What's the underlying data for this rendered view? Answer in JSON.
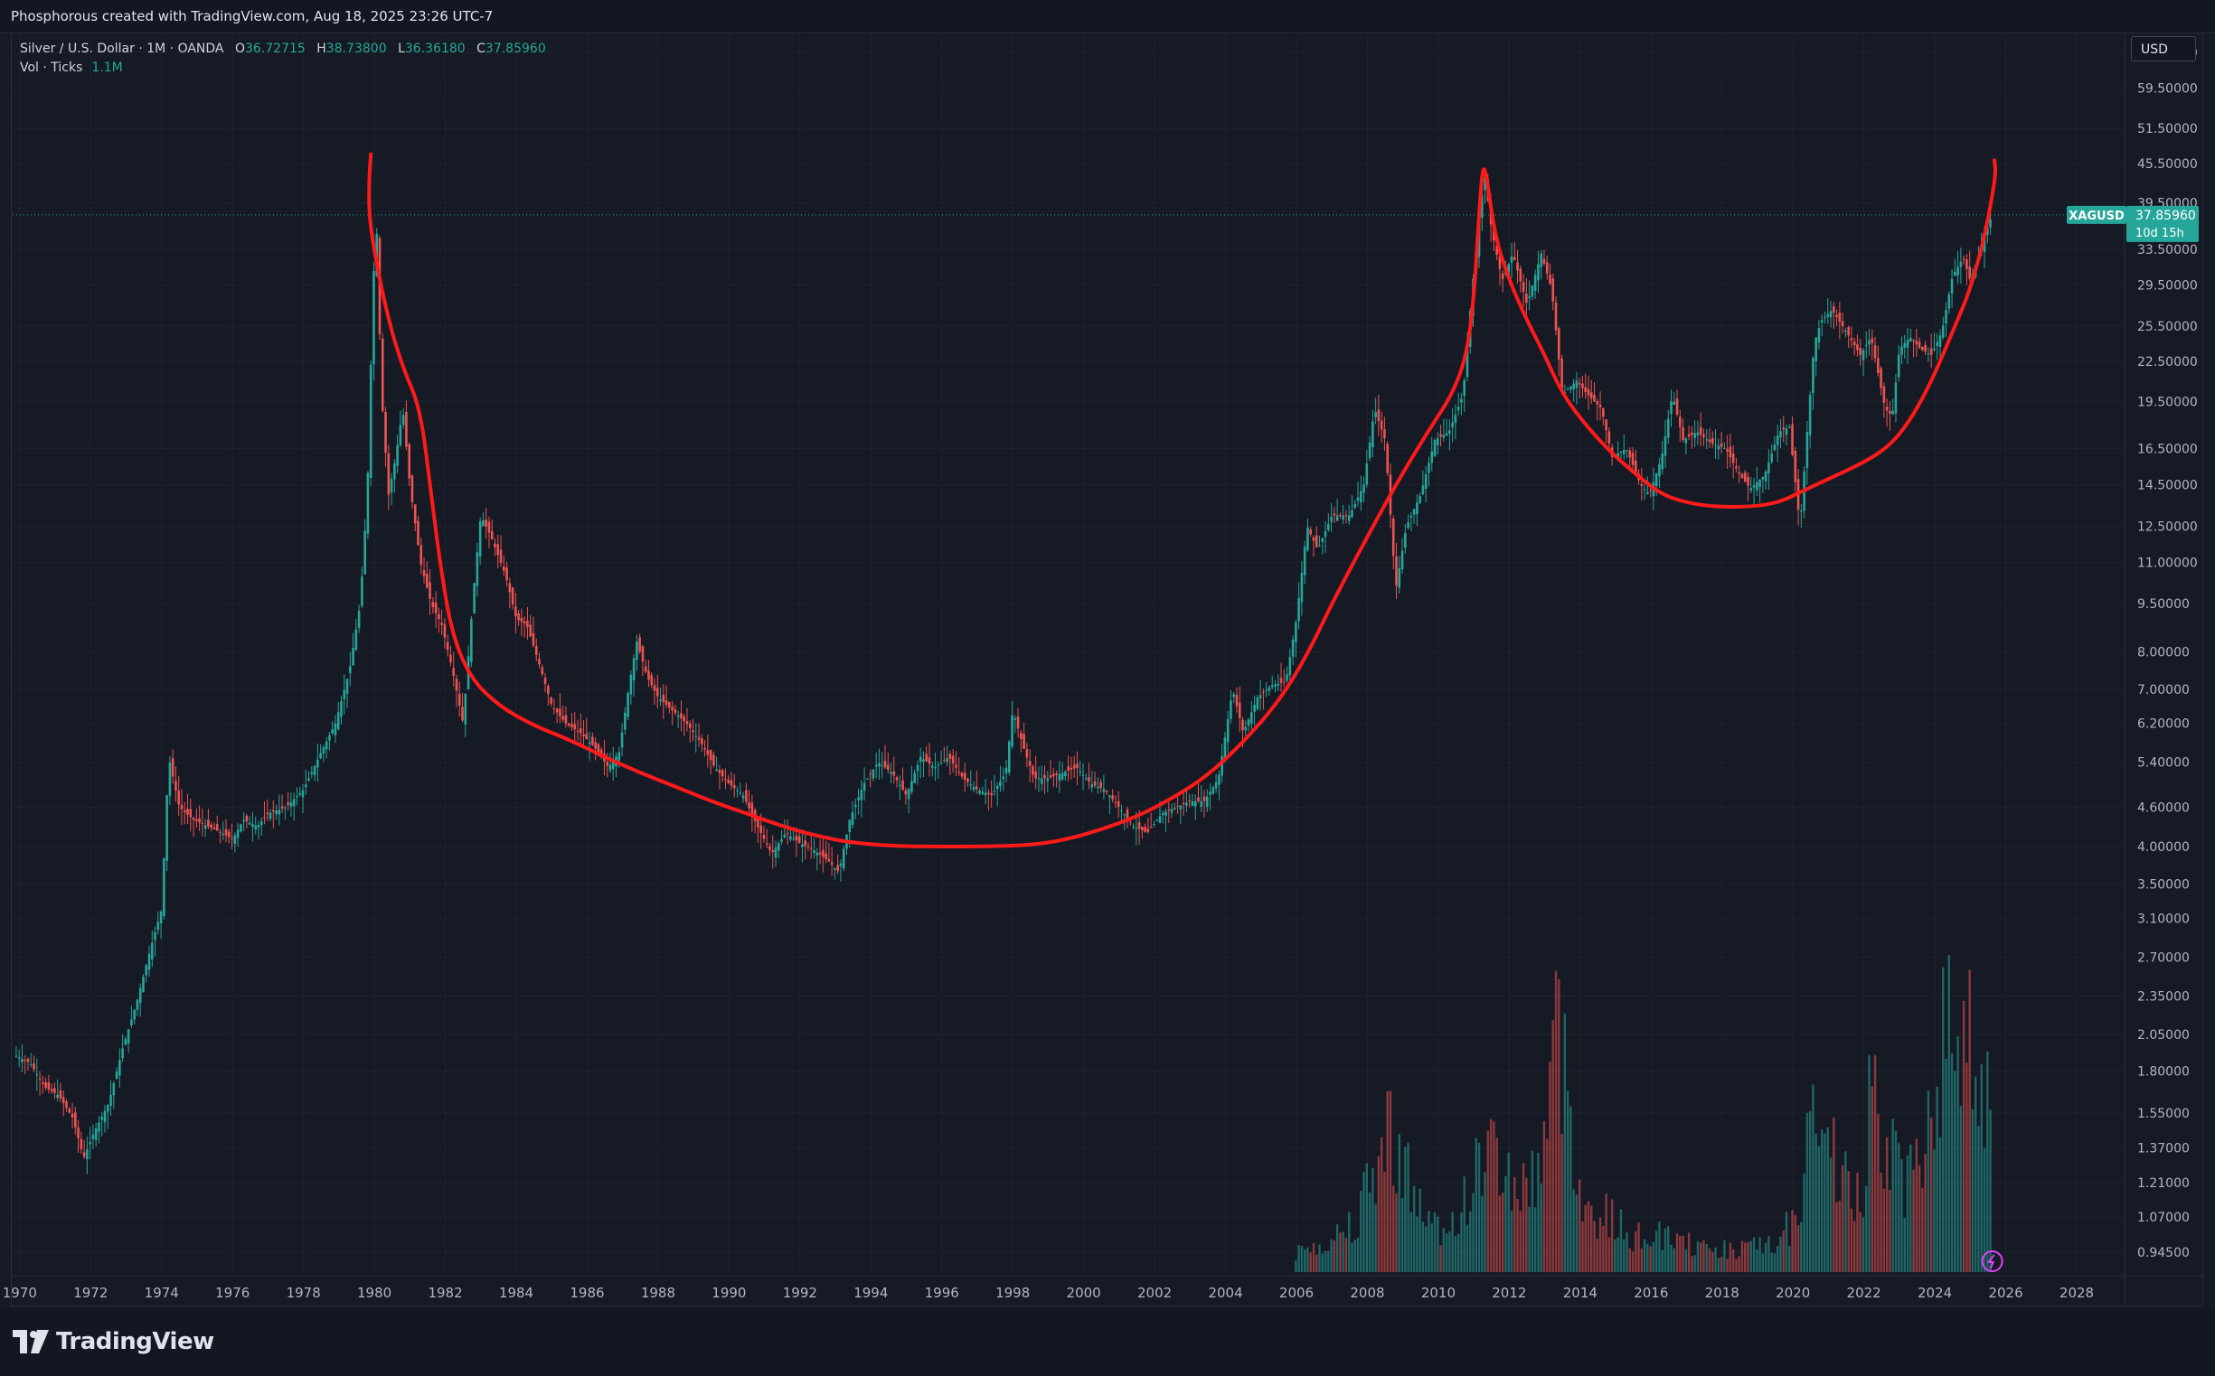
{
  "header": {
    "title": "Phosphorous created with TradingView.com, Aug 18, 2025 23:26 UTC-7"
  },
  "legend": {
    "symbol": "Silver / U.S. Dollar · 1M · OANDA",
    "open_label": "O",
    "open": "36.72715",
    "high_label": "H",
    "high": "38.73800",
    "low_label": "L",
    "low": "36.36180",
    "close_label": "C",
    "close": "37.85960",
    "volume_label": "Vol · Ticks",
    "volume": "1.1M"
  },
  "currency_button": "USD",
  "price_tag": {
    "symbol": "XAGUSD",
    "price": "37.85960",
    "countdown": "10d 15h"
  },
  "branding": {
    "logo_text": "TradingView",
    "logo_icon": "tradingview-logo-icon"
  },
  "colors": {
    "background": "#161a25",
    "up": "#26a69a",
    "down": "#ef5350",
    "drawing": "#ff1a1a",
    "grid": "#1f2330",
    "axis_text": "#b2b5be"
  },
  "chart_data": {
    "type": "candlestick",
    "instrument": "Silver / U.S. Dollar",
    "interval": "1M",
    "source": "OANDA",
    "scale": "log",
    "y_ticks": [
      "67.50000",
      "59.50000",
      "51.50000",
      "45.50000",
      "39.50000",
      "33.50000",
      "29.50000",
      "25.50000",
      "22.50000",
      "19.50000",
      "16.50000",
      "14.50000",
      "12.50000",
      "11.00000",
      "9.50000",
      "8.00000",
      "7.00000",
      "6.20000",
      "5.40000",
      "4.60000",
      "4.00000",
      "3.50000",
      "3.10000",
      "2.70000",
      "2.35000",
      "2.05000",
      "1.80000",
      "1.55000",
      "1.37000",
      "1.21000",
      "1.07000",
      "0.94500"
    ],
    "x_ticks": [
      "1970",
      "1972",
      "1974",
      "1976",
      "1978",
      "1980",
      "1982",
      "1984",
      "1986",
      "1988",
      "1990",
      "1992",
      "1994",
      "1996",
      "1998",
      "2000",
      "2002",
      "2004",
      "2006",
      "2008",
      "2010",
      "2012",
      "2014",
      "2016",
      "2018",
      "2020",
      "2022",
      "2024",
      "2026",
      "2028"
    ],
    "xlim": [
      1969.8,
      2029.3
    ],
    "ylim": [
      0.88,
      72
    ],
    "last_price": 37.8596,
    "price_path": [
      [
        1969.9,
        1.9
      ],
      [
        1970.3,
        1.85
      ],
      [
        1970.7,
        1.7
      ],
      [
        1971.1,
        1.65
      ],
      [
        1971.5,
        1.52
      ],
      [
        1971.8,
        1.32
      ],
      [
        1972.1,
        1.45
      ],
      [
        1972.5,
        1.6
      ],
      [
        1972.9,
        1.95
      ],
      [
        1973.3,
        2.3
      ],
      [
        1973.7,
        2.8
      ],
      [
        1974.0,
        3.2
      ],
      [
        1974.2,
        5.5
      ],
      [
        1974.5,
        4.6
      ],
      [
        1974.9,
        4.4
      ],
      [
        1975.3,
        4.3
      ],
      [
        1975.7,
        4.2
      ],
      [
        1976.0,
        4.1
      ],
      [
        1976.3,
        4.4
      ],
      [
        1976.7,
        4.3
      ],
      [
        1977.0,
        4.5
      ],
      [
        1977.5,
        4.6
      ],
      [
        1978.0,
        4.9
      ],
      [
        1978.5,
        5.6
      ],
      [
        1978.9,
        6.2
      ],
      [
        1979.3,
        7.5
      ],
      [
        1979.6,
        9.5
      ],
      [
        1979.8,
        14.0
      ],
      [
        1979.95,
        28.0
      ],
      [
        1980.05,
        38.0
      ],
      [
        1980.2,
        20.0
      ],
      [
        1980.4,
        14.0
      ],
      [
        1980.6,
        16.0
      ],
      [
        1980.8,
        19.0
      ],
      [
        1981.0,
        14.5
      ],
      [
        1981.3,
        11.0
      ],
      [
        1981.6,
        9.5
      ],
      [
        1981.9,
        8.8
      ],
      [
        1982.2,
        7.5
      ],
      [
        1982.5,
        6.2
      ],
      [
        1982.8,
        10.0
      ],
      [
        1983.0,
        13.0
      ],
      [
        1983.3,
        12.0
      ],
      [
        1983.7,
        10.5
      ],
      [
        1984.0,
        9.0
      ],
      [
        1984.3,
        8.8
      ],
      [
        1984.7,
        7.5
      ],
      [
        1985.0,
        6.6
      ],
      [
        1985.4,
        6.2
      ],
      [
        1985.8,
        6.0
      ],
      [
        1986.2,
        5.7
      ],
      [
        1986.6,
        5.3
      ],
      [
        1986.9,
        5.6
      ],
      [
        1987.2,
        7.2
      ],
      [
        1987.4,
        8.3
      ],
      [
        1987.7,
        7.3
      ],
      [
        1988.0,
        6.8
      ],
      [
        1988.4,
        6.5
      ],
      [
        1988.8,
        6.2
      ],
      [
        1989.2,
        5.8
      ],
      [
        1989.6,
        5.3
      ],
      [
        1990.0,
        5.0
      ],
      [
        1990.4,
        4.8
      ],
      [
        1990.8,
        4.3
      ],
      [
        1991.2,
        3.9
      ],
      [
        1991.6,
        4.2
      ],
      [
        1992.0,
        4.05
      ],
      [
        1992.4,
        3.95
      ],
      [
        1992.8,
        3.8
      ],
      [
        1993.1,
        3.65
      ],
      [
        1993.4,
        4.4
      ],
      [
        1993.8,
        5.0
      ],
      [
        1994.2,
        5.4
      ],
      [
        1994.6,
        5.2
      ],
      [
        1995.0,
        4.8
      ],
      [
        1995.4,
        5.5
      ],
      [
        1995.8,
        5.3
      ],
      [
        1996.2,
        5.5
      ],
      [
        1996.6,
        5.1
      ],
      [
        1997.0,
        4.9
      ],
      [
        1997.4,
        4.8
      ],
      [
        1997.8,
        5.2
      ],
      [
        1998.0,
        6.5
      ],
      [
        1998.3,
        5.7
      ],
      [
        1998.6,
        5.1
      ],
      [
        1999.0,
        5.1
      ],
      [
        1999.4,
        5.2
      ],
      [
        1999.8,
        5.3
      ],
      [
        2000.2,
        5.0
      ],
      [
        2000.6,
        4.9
      ],
      [
        2001.0,
        4.6
      ],
      [
        2001.4,
        4.3
      ],
      [
        2001.8,
        4.2
      ],
      [
        2002.2,
        4.5
      ],
      [
        2002.6,
        4.6
      ],
      [
        2003.0,
        4.7
      ],
      [
        2003.4,
        4.7
      ],
      [
        2003.8,
        5.1
      ],
      [
        2004.2,
        7.0
      ],
      [
        2004.5,
        6.0
      ],
      [
        2004.9,
        6.8
      ],
      [
        2005.3,
        7.1
      ],
      [
        2005.7,
        7.2
      ],
      [
        2006.0,
        9.0
      ],
      [
        2006.3,
        12.5
      ],
      [
        2006.6,
        11.5
      ],
      [
        2007.0,
        13.0
      ],
      [
        2007.5,
        13.0
      ],
      [
        2007.9,
        14.5
      ],
      [
        2008.2,
        19.0
      ],
      [
        2008.5,
        17.0
      ],
      [
        2008.8,
        10.0
      ],
      [
        2009.1,
        12.5
      ],
      [
        2009.5,
        14.0
      ],
      [
        2009.9,
        17.0
      ],
      [
        2010.3,
        17.5
      ],
      [
        2010.7,
        20.0
      ],
      [
        2010.95,
        29.0
      ],
      [
        2011.3,
        44.0
      ],
      [
        2011.5,
        36.0
      ],
      [
        2011.8,
        30.0
      ],
      [
        2012.1,
        33.0
      ],
      [
        2012.5,
        27.5
      ],
      [
        2012.9,
        33.0
      ],
      [
        2013.2,
        29.0
      ],
      [
        2013.5,
        20.0
      ],
      [
        2013.9,
        21.0
      ],
      [
        2014.2,
        20.0
      ],
      [
        2014.6,
        19.0
      ],
      [
        2014.9,
        16.0
      ],
      [
        2015.3,
        16.5
      ],
      [
        2015.7,
        14.5
      ],
      [
        2015.95,
        14.0
      ],
      [
        2016.3,
        16.0
      ],
      [
        2016.6,
        20.0
      ],
      [
        2016.9,
        17.0
      ],
      [
        2017.3,
        17.5
      ],
      [
        2017.7,
        16.8
      ],
      [
        2018.1,
        16.5
      ],
      [
        2018.5,
        15.0
      ],
      [
        2018.8,
        14.3
      ],
      [
        2019.2,
        15.0
      ],
      [
        2019.6,
        17.5
      ],
      [
        2019.9,
        17.8
      ],
      [
        2020.2,
        12.5
      ],
      [
        2020.4,
        17.5
      ],
      [
        2020.6,
        24.0
      ],
      [
        2020.8,
        26.0
      ],
      [
        2021.1,
        27.0
      ],
      [
        2021.5,
        25.0
      ],
      [
        2021.9,
        23.0
      ],
      [
        2022.2,
        24.5
      ],
      [
        2022.6,
        19.0
      ],
      [
        2022.8,
        18.5
      ],
      [
        2023.0,
        23.5
      ],
      [
        2023.3,
        24.5
      ],
      [
        2023.6,
        23.5
      ],
      [
        2023.9,
        23.0
      ],
      [
        2024.2,
        25.0
      ],
      [
        2024.5,
        30.5
      ],
      [
        2024.8,
        32.5
      ],
      [
        2025.0,
        30.0
      ],
      [
        2025.3,
        33.5
      ],
      [
        2025.5,
        36.5
      ],
      [
        2025.62,
        37.86
      ]
    ],
    "volume_profile": [
      [
        2005.9,
        0.03
      ],
      [
        2007.0,
        0.06
      ],
      [
        2007.7,
        0.1
      ],
      [
        2008.2,
        0.18
      ],
      [
        2008.7,
        0.27
      ],
      [
        2009.2,
        0.16
      ],
      [
        2009.8,
        0.08
      ],
      [
        2010.4,
        0.09
      ],
      [
        2010.8,
        0.13
      ],
      [
        2011.3,
        0.22
      ],
      [
        2011.7,
        0.2
      ],
      [
        2012.3,
        0.14
      ],
      [
        2012.8,
        0.18
      ],
      [
        2013.3,
        0.42
      ],
      [
        2013.7,
        0.32
      ],
      [
        2014.2,
        0.1
      ],
      [
        2014.8,
        0.1
      ],
      [
        2015.5,
        0.06
      ],
      [
        2016.3,
        0.07
      ],
      [
        2017.5,
        0.04
      ],
      [
        2018.5,
        0.04
      ],
      [
        2019.5,
        0.05
      ],
      [
        2020.2,
        0.12
      ],
      [
        2020.5,
        0.3
      ],
      [
        2020.9,
        0.18
      ],
      [
        2021.1,
        0.24
      ],
      [
        2021.5,
        0.15
      ],
      [
        2022.0,
        0.12
      ],
      [
        2022.2,
        0.6
      ],
      [
        2022.5,
        0.25
      ],
      [
        2022.9,
        0.18
      ],
      [
        2023.3,
        0.16
      ],
      [
        2023.8,
        0.28
      ],
      [
        2024.2,
        0.38
      ],
      [
        2024.6,
        0.45
      ],
      [
        2025.1,
        0.4
      ],
      [
        2025.62,
        0.28
      ]
    ],
    "drawings": [
      {
        "type": "freehand",
        "points": [
          [
            1979.9,
            47.0
          ],
          [
            1979.8,
            40.0
          ],
          [
            1980.0,
            33.0
          ],
          [
            1980.4,
            26.0
          ],
          [
            1980.8,
            22.0
          ],
          [
            1981.3,
            19.0
          ],
          [
            1981.6,
            14.0
          ],
          [
            1981.9,
            10.5
          ],
          [
            1982.2,
            8.5
          ],
          [
            1982.7,
            7.3
          ],
          [
            1983.5,
            6.6
          ],
          [
            1984.5,
            6.15
          ],
          [
            1985.5,
            5.85
          ],
          [
            1986.5,
            5.5
          ],
          [
            1987.5,
            5.2
          ],
          [
            1988.5,
            4.95
          ],
          [
            1989.5,
            4.7
          ],
          [
            1990.5,
            4.5
          ],
          [
            1991.5,
            4.3
          ],
          [
            1992.5,
            4.15
          ],
          [
            1993.5,
            4.05
          ],
          [
            1995.0,
            4.0
          ],
          [
            1997.0,
            4.0
          ],
          [
            1998.5,
            4.02
          ],
          [
            1999.5,
            4.1
          ],
          [
            2000.5,
            4.25
          ],
          [
            2001.5,
            4.45
          ],
          [
            2002.5,
            4.75
          ],
          [
            2003.5,
            5.15
          ],
          [
            2004.5,
            5.8
          ],
          [
            2005.5,
            6.7
          ],
          [
            2006.3,
            7.9
          ],
          [
            2007.0,
            9.5
          ],
          [
            2007.8,
            11.5
          ],
          [
            2008.8,
            14.5
          ],
          [
            2009.7,
            17.5
          ],
          [
            2010.4,
            20.0
          ],
          [
            2010.8,
            23.0
          ],
          [
            2011.0,
            28.0
          ],
          [
            2011.15,
            38.0
          ],
          [
            2011.25,
            45.0
          ],
          [
            2011.35,
            44.0
          ],
          [
            2011.6,
            35.0
          ],
          [
            2012.0,
            30.0
          ],
          [
            2012.5,
            26.0
          ],
          [
            2013.0,
            23.0
          ],
          [
            2013.5,
            20.0
          ],
          [
            2014.2,
            17.8
          ],
          [
            2014.9,
            16.2
          ],
          [
            2015.6,
            15.0
          ],
          [
            2016.3,
            14.0
          ],
          [
            2017.0,
            13.6
          ],
          [
            2017.8,
            13.4
          ],
          [
            2018.8,
            13.4
          ],
          [
            2019.6,
            13.6
          ],
          [
            2020.3,
            14.2
          ],
          [
            2021.0,
            14.8
          ],
          [
            2021.8,
            15.5
          ],
          [
            2022.5,
            16.3
          ],
          [
            2023.0,
            17.3
          ],
          [
            2023.5,
            19.0
          ],
          [
            2024.0,
            21.5
          ],
          [
            2024.5,
            25.0
          ],
          [
            2025.0,
            29.0
          ],
          [
            2025.4,
            35.0
          ],
          [
            2025.6,
            40.0
          ],
          [
            2025.72,
            44.0
          ],
          [
            2025.68,
            46.0
          ]
        ]
      }
    ]
  }
}
